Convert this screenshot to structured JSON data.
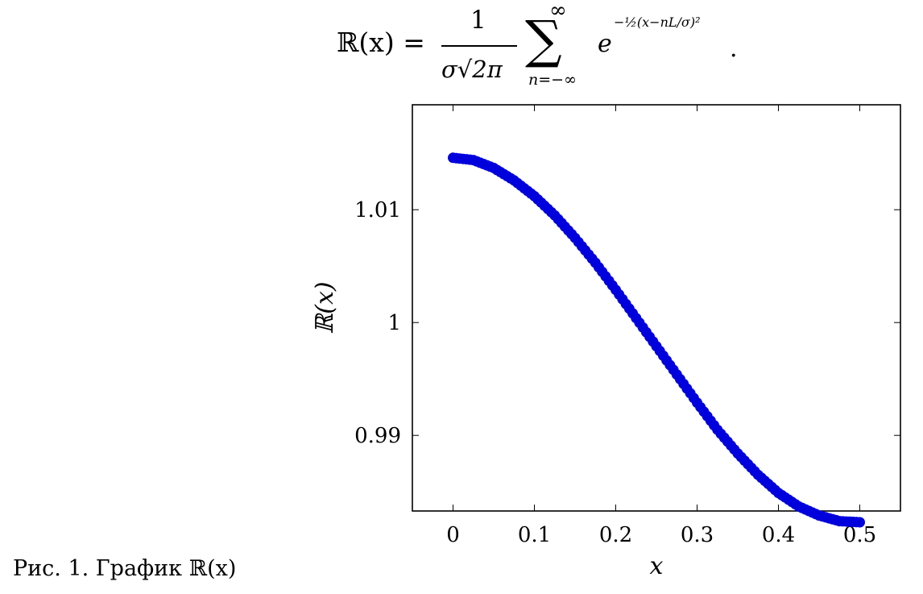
{
  "formula": {
    "lhs": "ℝ(x) =",
    "numerator": "1",
    "denominator": "σ√2π",
    "sum_upper": "∞",
    "sum_symbol": "∑",
    "sum_lower": "n=−∞",
    "base": "e",
    "exponent": "−½(x−nL/σ)²",
    "end": "."
  },
  "caption": "Рис. 1. График ℝ(x)",
  "chart_data": {
    "type": "scatter",
    "xlabel": "x",
    "ylabel": "ℝ(x)",
    "xlim": [
      -0.05,
      0.55
    ],
    "ylim": [
      0.9833,
      1.0193
    ],
    "xticks": [
      0,
      0.1,
      0.2,
      0.3,
      0.4,
      0.5
    ],
    "xtick_labels": [
      "0",
      "0.1",
      "0.2",
      "0.3",
      "0.4",
      "0.5"
    ],
    "yticks": [
      0.99,
      1.0,
      1.01
    ],
    "ytick_labels": [
      "0.99",
      "1",
      "1.01"
    ],
    "grid": false,
    "series": [
      {
        "color": "#0000dd",
        "x": [
          0,
          0.025,
          0.05,
          0.075,
          0.1,
          0.125,
          0.15,
          0.175,
          0.2,
          0.225,
          0.25,
          0.275,
          0.3,
          0.325,
          0.35,
          0.375,
          0.4,
          0.425,
          0.45,
          0.475,
          0.5
        ],
        "y": [
          1.0146,
          1.0144,
          1.0137,
          1.0126,
          1.0112,
          1.0095,
          1.0075,
          1.0053,
          1.0029,
          1.0004,
          0.9979,
          0.9954,
          0.9929,
          0.9905,
          0.9884,
          0.9865,
          0.9849,
          0.9837,
          0.9829,
          0.9824,
          0.9823
        ]
      }
    ]
  }
}
